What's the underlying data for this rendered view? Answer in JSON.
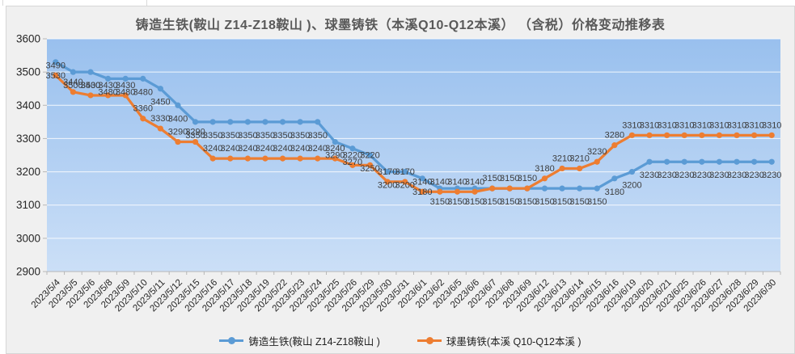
{
  "title": "铸造生铁(鞍山 Z14-Z18鞍山 )、球墨铸铁（本溪Q10-Q12本溪） （含税）价格变动推移表",
  "chart_data": {
    "type": "line",
    "title": "铸造生铁(鞍山 Z14-Z18鞍山 )、球墨铸铁（本溪Q10-Q12本溪） （含税）价格变动推移表",
    "categories": [
      "2023/5/4",
      "2023/5/5",
      "2023/5/6",
      "2023/5/8",
      "2023/5/9",
      "2023/5/10",
      "2023/5/11",
      "2023/5/12",
      "2023/5/15",
      "2023/5/16",
      "2023/5/17",
      "2023/5/18",
      "2023/5/19",
      "2023/5/22",
      "2023/5/23",
      "2023/5/24",
      "2023/5/25",
      "2023/5/26",
      "2023/5/29",
      "2023/5/30",
      "2023/5/31",
      "2023/6/1",
      "2023/6/2",
      "2023/6/5",
      "2023/6/6",
      "2023/6/7",
      "2023/6/8",
      "2023/6/9",
      "2023/6/12",
      "2023/6/13",
      "2023/6/14",
      "2023/6/15",
      "2023/6/16",
      "2023/6/19",
      "2023/6/20",
      "2023/6/21",
      "2023/6/25",
      "2023/6/26",
      "2023/6/27",
      "2023/6/28",
      "2023/6/29",
      "2023/6/30"
    ],
    "series": [
      {
        "name": "铸造生铁(鞍山 Z14-Z18鞍山 )",
        "color": "#5b9bd5",
        "label_position": "below",
        "values": [
          3530,
          3500,
          3500,
          3480,
          3480,
          3480,
          3450,
          3400,
          3350,
          3350,
          3350,
          3350,
          3350,
          3350,
          3350,
          3350,
          3290,
          3270,
          3250,
          3200,
          3200,
          3180,
          3150,
          3150,
          3150,
          3150,
          3150,
          3150,
          3150,
          3150,
          3150,
          3150,
          3180,
          3200,
          3230,
          3230,
          3230,
          3230,
          3230,
          3230,
          3230,
          3230
        ]
      },
      {
        "name": "球墨铸铁(本溪 Q10-Q12本溪 )",
        "color": "#ed7d31",
        "label_position": "above",
        "values": [
          3490,
          3440,
          3430,
          3430,
          3430,
          3360,
          3330,
          3290,
          3290,
          3240,
          3240,
          3240,
          3240,
          3240,
          3240,
          3240,
          3240,
          3220,
          3220,
          3170,
          3170,
          3140,
          3140,
          3140,
          3140,
          3150,
          3150,
          3150,
          3180,
          3210,
          3210,
          3230,
          3280,
          3310,
          3310,
          3310,
          3310,
          3310,
          3310,
          3310,
          3310,
          3310
        ]
      }
    ],
    "ylim": [
      2900,
      3600
    ],
    "ytick_step": 100,
    "grid": true,
    "legend_position": "bottom",
    "xlabel": "",
    "ylabel": ""
  },
  "colors": {
    "frame_bg": "#f0f0f0",
    "plot_gradient_top": "#99c0ee",
    "plot_gradient_bottom": "#cbdff7",
    "gridline": "#ffffff",
    "axis": "#b7b7b7",
    "axis_text": "#262626",
    "data_label": "#3d3d3d",
    "title_text": "#595959"
  }
}
